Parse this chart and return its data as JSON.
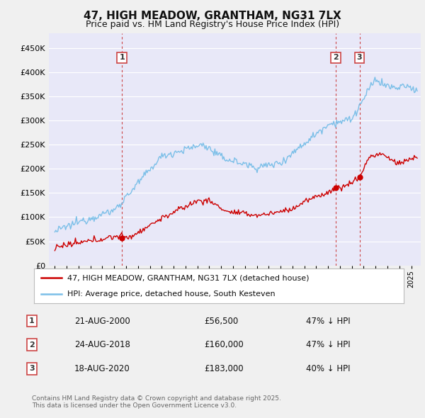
{
  "title": "47, HIGH MEADOW, GRANTHAM, NG31 7LX",
  "subtitle": "Price paid vs. HM Land Registry's House Price Index (HPI)",
  "legend_label_red": "47, HIGH MEADOW, GRANTHAM, NG31 7LX (detached house)",
  "legend_label_blue": "HPI: Average price, detached house, South Kesteven",
  "footer_line1": "Contains HM Land Registry data © Crown copyright and database right 2025.",
  "footer_line2": "This data is licensed under the Open Government Licence v3.0.",
  "sale_points": [
    {
      "num": 1,
      "date_label": "21-AUG-2000",
      "price": 56500,
      "pct": "47% ↓ HPI",
      "x": 2000.645
    },
    {
      "num": 2,
      "date_label": "24-AUG-2018",
      "price": 160000,
      "pct": "47% ↓ HPI",
      "x": 2018.645
    },
    {
      "num": 3,
      "date_label": "18-AUG-2020",
      "price": 183000,
      "pct": "40% ↓ HPI",
      "x": 2020.645
    }
  ],
  "hpi_color": "#7bbfe8",
  "price_color": "#cc0000",
  "marker_color": "#cc0000",
  "vline_color": "#cc3333",
  "bg_color": "#f0f0f0",
  "plot_bg": "#e8e8f8",
  "grid_color": "#ffffff",
  "ylim": [
    0,
    480000
  ],
  "xlim": [
    1994.5,
    2025.8
  ],
  "yticks": [
    0,
    50000,
    100000,
    150000,
    200000,
    250000,
    300000,
    350000,
    400000,
    450000
  ],
  "xticks": [
    1995,
    1996,
    1997,
    1998,
    1999,
    2000,
    2001,
    2002,
    2003,
    2004,
    2005,
    2006,
    2007,
    2008,
    2009,
    2010,
    2011,
    2012,
    2013,
    2014,
    2015,
    2016,
    2017,
    2018,
    2019,
    2020,
    2021,
    2022,
    2023,
    2024,
    2025
  ]
}
